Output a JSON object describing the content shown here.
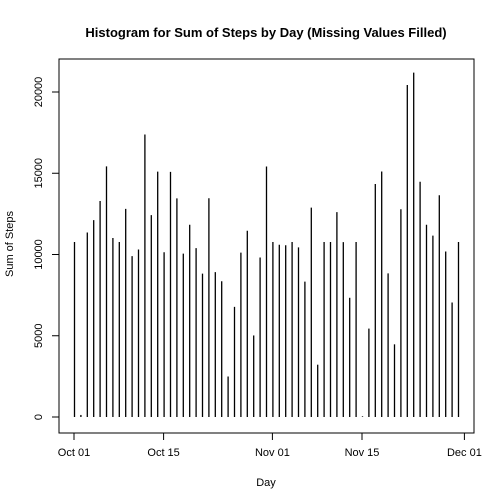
{
  "chart_data": {
    "type": "bar",
    "title": "Histogram for Sum of Steps by Day (Missing Values Filled)",
    "xlabel": "Day",
    "ylabel": "Sum of Steps",
    "xlim": [
      "2012-10-01",
      "2012-12-01"
    ],
    "ylim": [
      0,
      21500
    ],
    "x_ticks": [
      {
        "date": "2012-10-01",
        "label": "Oct 01"
      },
      {
        "date": "2012-10-15",
        "label": "Oct 15"
      },
      {
        "date": "2012-11-01",
        "label": "Nov 01"
      },
      {
        "date": "2012-11-15",
        "label": "Nov 15"
      },
      {
        "date": "2012-12-01",
        "label": "Dec 01"
      }
    ],
    "y_ticks": [
      0,
      5000,
      10000,
      15000,
      20000
    ],
    "grid": false,
    "x": [
      "2012-10-01",
      "2012-10-02",
      "2012-10-03",
      "2012-10-04",
      "2012-10-05",
      "2012-10-06",
      "2012-10-07",
      "2012-10-08",
      "2012-10-09",
      "2012-10-10",
      "2012-10-11",
      "2012-10-12",
      "2012-10-13",
      "2012-10-14",
      "2012-10-15",
      "2012-10-16",
      "2012-10-17",
      "2012-10-18",
      "2012-10-19",
      "2012-10-20",
      "2012-10-21",
      "2012-10-22",
      "2012-10-23",
      "2012-10-24",
      "2012-10-25",
      "2012-10-26",
      "2012-10-27",
      "2012-10-28",
      "2012-10-29",
      "2012-10-30",
      "2012-10-31",
      "2012-11-01",
      "2012-11-02",
      "2012-11-03",
      "2012-11-04",
      "2012-11-05",
      "2012-11-06",
      "2012-11-07",
      "2012-11-08",
      "2012-11-09",
      "2012-11-10",
      "2012-11-11",
      "2012-11-12",
      "2012-11-13",
      "2012-11-14",
      "2012-11-15",
      "2012-11-16",
      "2012-11-17",
      "2012-11-18",
      "2012-11-19",
      "2012-11-20",
      "2012-11-21",
      "2012-11-22",
      "2012-11-23",
      "2012-11-24",
      "2012-11-25",
      "2012-11-26",
      "2012-11-27",
      "2012-11-28",
      "2012-11-29",
      "2012-11-30"
    ],
    "values": [
      10766,
      126,
      11352,
      12116,
      13294,
      15420,
      11015,
      10766,
      12811,
      9900,
      10304,
      17382,
      12426,
      15098,
      10139,
      15084,
      13452,
      10056,
      11829,
      10395,
      8821,
      13460,
      8918,
      8355,
      2492,
      6778,
      10119,
      11458,
      5018,
      9819,
      15414,
      10766,
      10600,
      10571,
      10766,
      10439,
      8334,
      12883,
      3219,
      10766,
      10766,
      12608,
      10765,
      7336,
      10766,
      41,
      5441,
      14339,
      15110,
      8841,
      4472,
      12787,
      20427,
      21194,
      14478,
      11834,
      11162,
      13646,
      10183,
      7047,
      10766
    ]
  }
}
